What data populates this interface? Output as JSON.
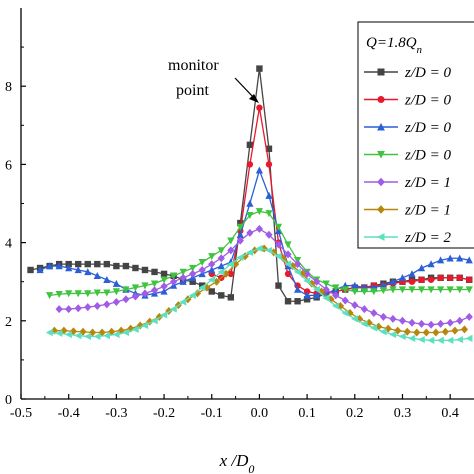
{
  "chart_data": {
    "type": "line",
    "xlabel": "x /D0",
    "xlabel_main": "x /D",
    "xlabel_sub": "0",
    "ylabel": "",
    "xlim": [
      -0.5,
      0.45
    ],
    "ylim": [
      0,
      10
    ],
    "x_ticks": [
      "-0.5",
      "-0.4",
      "-0.3",
      "-0.2",
      "-0.1",
      "0.0",
      "0.1",
      "0.2",
      "0.3",
      "0.4"
    ],
    "x_tick_values": [
      -0.5,
      -0.4,
      -0.3,
      -0.2,
      -0.1,
      0.0,
      0.1,
      0.2,
      0.3,
      0.4
    ],
    "y_ticks": [
      "0",
      "2",
      "4",
      "6",
      "8"
    ],
    "y_tick_values": [
      0,
      2,
      4,
      6,
      8
    ],
    "legend_title_main": "Q=1.8Q",
    "legend_title_sub": "n",
    "legend_position": "top-right",
    "annotation": {
      "line1": "monitor",
      "line2": "point",
      "target_x": -0.03,
      "target_y": 8.3
    },
    "series": [
      {
        "name": "z/D = 0",
        "color": "#444444",
        "marker": "square",
        "x": [
          -0.48,
          -0.46,
          -0.44,
          -0.42,
          -0.4,
          -0.38,
          -0.36,
          -0.34,
          -0.32,
          -0.3,
          -0.28,
          -0.26,
          -0.24,
          -0.22,
          -0.2,
          -0.18,
          -0.16,
          -0.14,
          -0.12,
          -0.1,
          -0.08,
          -0.06,
          -0.04,
          -0.02,
          0.0,
          0.02,
          0.04,
          0.06,
          0.08,
          0.1,
          0.12,
          0.14,
          0.16,
          0.18,
          0.2,
          0.22,
          0.24,
          0.26,
          0.28,
          0.3,
          0.32,
          0.34,
          0.36,
          0.38,
          0.4,
          0.42,
          0.44
        ],
        "y": [
          3.3,
          3.35,
          3.4,
          3.45,
          3.45,
          3.45,
          3.45,
          3.45,
          3.45,
          3.4,
          3.4,
          3.35,
          3.3,
          3.25,
          3.2,
          3.15,
          3.05,
          3.0,
          2.9,
          2.75,
          2.65,
          2.6,
          4.5,
          6.5,
          8.45,
          6.4,
          2.9,
          2.5,
          2.5,
          2.55,
          2.6,
          2.7,
          2.75,
          2.8,
          2.85,
          2.85,
          2.9,
          2.95,
          3.0,
          3.0,
          3.05,
          3.05,
          3.1,
          3.1,
          3.1,
          3.1,
          3.05
        ]
      },
      {
        "name": "z/D = 0",
        "color": "#e8192c",
        "marker": "circle",
        "x": [
          -0.1,
          -0.08,
          -0.06,
          -0.04,
          -0.02,
          0.0,
          0.02,
          0.04,
          0.06,
          0.08,
          0.1,
          0.12,
          0.14,
          0.16,
          0.18,
          0.2,
          0.22,
          0.24,
          0.26,
          0.28,
          0.3,
          0.32,
          0.34,
          0.36,
          0.38,
          0.4,
          0.42,
          0.44
        ],
        "y": [
          3.2,
          3.1,
          3.2,
          4.3,
          6.0,
          7.45,
          6.0,
          4.0,
          3.2,
          2.9,
          2.75,
          2.7,
          2.7,
          2.75,
          2.8,
          2.85,
          2.85,
          2.9,
          2.9,
          2.95,
          3.0,
          3.0,
          3.05,
          3.05,
          3.1,
          3.1,
          3.1,
          3.05
        ]
      },
      {
        "name": "z/D = 0",
        "color": "#2a5fd8",
        "marker": "triangle-up",
        "x": [
          -0.46,
          -0.44,
          -0.42,
          -0.4,
          -0.38,
          -0.36,
          -0.34,
          -0.32,
          -0.3,
          -0.28,
          -0.26,
          -0.24,
          -0.22,
          -0.2,
          -0.18,
          -0.16,
          -0.14,
          -0.12,
          -0.1,
          -0.08,
          -0.06,
          -0.04,
          -0.02,
          0.0,
          0.02,
          0.04,
          0.06,
          0.08,
          0.1,
          0.12,
          0.14,
          0.16,
          0.18,
          0.2,
          0.22,
          0.24,
          0.26,
          0.28,
          0.3,
          0.32,
          0.34,
          0.36,
          0.38,
          0.4,
          0.42,
          0.44
        ],
        "y": [
          3.3,
          3.4,
          3.4,
          3.35,
          3.3,
          3.25,
          3.15,
          3.05,
          2.95,
          2.8,
          2.7,
          2.65,
          2.7,
          2.75,
          2.9,
          3.0,
          3.1,
          3.2,
          3.3,
          3.4,
          3.5,
          4.2,
          5.0,
          5.85,
          5.2,
          4.3,
          3.4,
          2.8,
          2.65,
          2.65,
          2.7,
          2.8,
          2.9,
          2.9,
          2.85,
          2.85,
          2.9,
          3.0,
          3.1,
          3.2,
          3.35,
          3.45,
          3.55,
          3.6,
          3.6,
          3.55
        ]
      },
      {
        "name": "z/D = 0",
        "color": "#3ec43e",
        "marker": "triangle-down",
        "x": [
          -0.44,
          -0.42,
          -0.4,
          -0.38,
          -0.36,
          -0.34,
          -0.32,
          -0.3,
          -0.28,
          -0.26,
          -0.24,
          -0.22,
          -0.2,
          -0.18,
          -0.16,
          -0.14,
          -0.12,
          -0.1,
          -0.08,
          -0.06,
          -0.04,
          -0.02,
          0.0,
          0.02,
          0.04,
          0.06,
          0.08,
          0.1,
          0.12,
          0.14,
          0.16,
          0.18,
          0.2,
          0.22,
          0.24,
          0.26,
          0.28,
          0.3,
          0.32,
          0.34,
          0.36,
          0.38,
          0.4,
          0.42,
          0.44
        ],
        "y": [
          2.65,
          2.68,
          2.7,
          2.7,
          2.7,
          2.72,
          2.72,
          2.75,
          2.8,
          2.85,
          2.9,
          2.95,
          3.05,
          3.15,
          3.25,
          3.35,
          3.5,
          3.65,
          3.8,
          4.05,
          4.4,
          4.7,
          4.8,
          4.75,
          4.4,
          3.95,
          3.55,
          3.25,
          3.05,
          2.95,
          2.85,
          2.8,
          2.75,
          2.75,
          2.75,
          2.78,
          2.8,
          2.8,
          2.8,
          2.8,
          2.8,
          2.8,
          2.8,
          2.8,
          2.8
        ]
      },
      {
        "name": "z/D = 1",
        "color": "#a05ce6",
        "marker": "diamond",
        "x": [
          -0.42,
          -0.4,
          -0.38,
          -0.36,
          -0.34,
          -0.32,
          -0.3,
          -0.28,
          -0.26,
          -0.24,
          -0.22,
          -0.2,
          -0.18,
          -0.16,
          -0.14,
          -0.12,
          -0.1,
          -0.08,
          -0.06,
          -0.04,
          -0.02,
          0.0,
          0.02,
          0.04,
          0.06,
          0.08,
          0.1,
          0.12,
          0.14,
          0.16,
          0.18,
          0.2,
          0.22,
          0.24,
          0.26,
          0.28,
          0.3,
          0.32,
          0.34,
          0.36,
          0.38,
          0.4,
          0.42,
          0.44
        ],
        "y": [
          2.3,
          2.3,
          2.32,
          2.35,
          2.38,
          2.42,
          2.48,
          2.55,
          2.62,
          2.7,
          2.78,
          2.88,
          3.0,
          3.1,
          3.2,
          3.3,
          3.45,
          3.6,
          3.8,
          4.05,
          4.25,
          4.35,
          4.2,
          3.95,
          3.7,
          3.45,
          3.2,
          3.0,
          2.8,
          2.65,
          2.52,
          2.4,
          2.3,
          2.2,
          2.1,
          2.05,
          2.0,
          1.95,
          1.92,
          1.9,
          1.92,
          1.95,
          2.0,
          2.1
        ]
      },
      {
        "name": "z/D = 1",
        "color": "#b8860b",
        "marker": "diamond",
        "x": [
          -0.43,
          -0.41,
          -0.39,
          -0.37,
          -0.35,
          -0.33,
          -0.31,
          -0.29,
          -0.27,
          -0.25,
          -0.23,
          -0.21,
          -0.19,
          -0.17,
          -0.15,
          -0.13,
          -0.11,
          -0.09,
          -0.07,
          -0.05,
          -0.03,
          -0.01,
          0.01,
          0.03,
          0.05,
          0.07,
          0.09,
          0.11,
          0.13,
          0.15,
          0.17,
          0.19,
          0.21,
          0.23,
          0.25,
          0.27,
          0.29,
          0.31,
          0.33,
          0.35,
          0.37,
          0.39,
          0.41,
          0.43
        ],
        "y": [
          1.75,
          1.75,
          1.73,
          1.72,
          1.7,
          1.7,
          1.72,
          1.75,
          1.8,
          1.88,
          1.98,
          2.1,
          2.25,
          2.4,
          2.55,
          2.7,
          2.85,
          3.0,
          3.2,
          3.45,
          3.65,
          3.8,
          3.85,
          3.75,
          3.6,
          3.4,
          3.2,
          2.95,
          2.75,
          2.55,
          2.38,
          2.2,
          2.05,
          1.95,
          1.85,
          1.8,
          1.75,
          1.72,
          1.7,
          1.7,
          1.7,
          1.72,
          1.75,
          1.78
        ]
      },
      {
        "name": "z/D = 2",
        "color": "#5ce0c0",
        "marker": "triangle-left",
        "x": [
          -0.44,
          -0.42,
          -0.4,
          -0.38,
          -0.36,
          -0.34,
          -0.32,
          -0.3,
          -0.28,
          -0.26,
          -0.24,
          -0.22,
          -0.2,
          -0.18,
          -0.16,
          -0.14,
          -0.12,
          -0.1,
          -0.08,
          -0.06,
          -0.04,
          -0.02,
          0.0,
          0.02,
          0.04,
          0.06,
          0.08,
          0.1,
          0.12,
          0.14,
          0.16,
          0.18,
          0.2,
          0.22,
          0.24,
          0.26,
          0.28,
          0.3,
          0.32,
          0.34,
          0.36,
          0.38,
          0.4,
          0.42,
          0.44
        ],
        "y": [
          1.7,
          1.68,
          1.65,
          1.62,
          1.6,
          1.6,
          1.62,
          1.65,
          1.7,
          1.78,
          1.88,
          2.0,
          2.15,
          2.3,
          2.48,
          2.65,
          2.85,
          3.05,
          3.25,
          3.45,
          3.62,
          3.75,
          3.85,
          3.8,
          3.65,
          3.45,
          3.25,
          3.02,
          2.8,
          2.58,
          2.38,
          2.2,
          2.05,
          1.92,
          1.82,
          1.72,
          1.65,
          1.6,
          1.55,
          1.52,
          1.5,
          1.5,
          1.5,
          1.52,
          1.55
        ]
      }
    ]
  }
}
